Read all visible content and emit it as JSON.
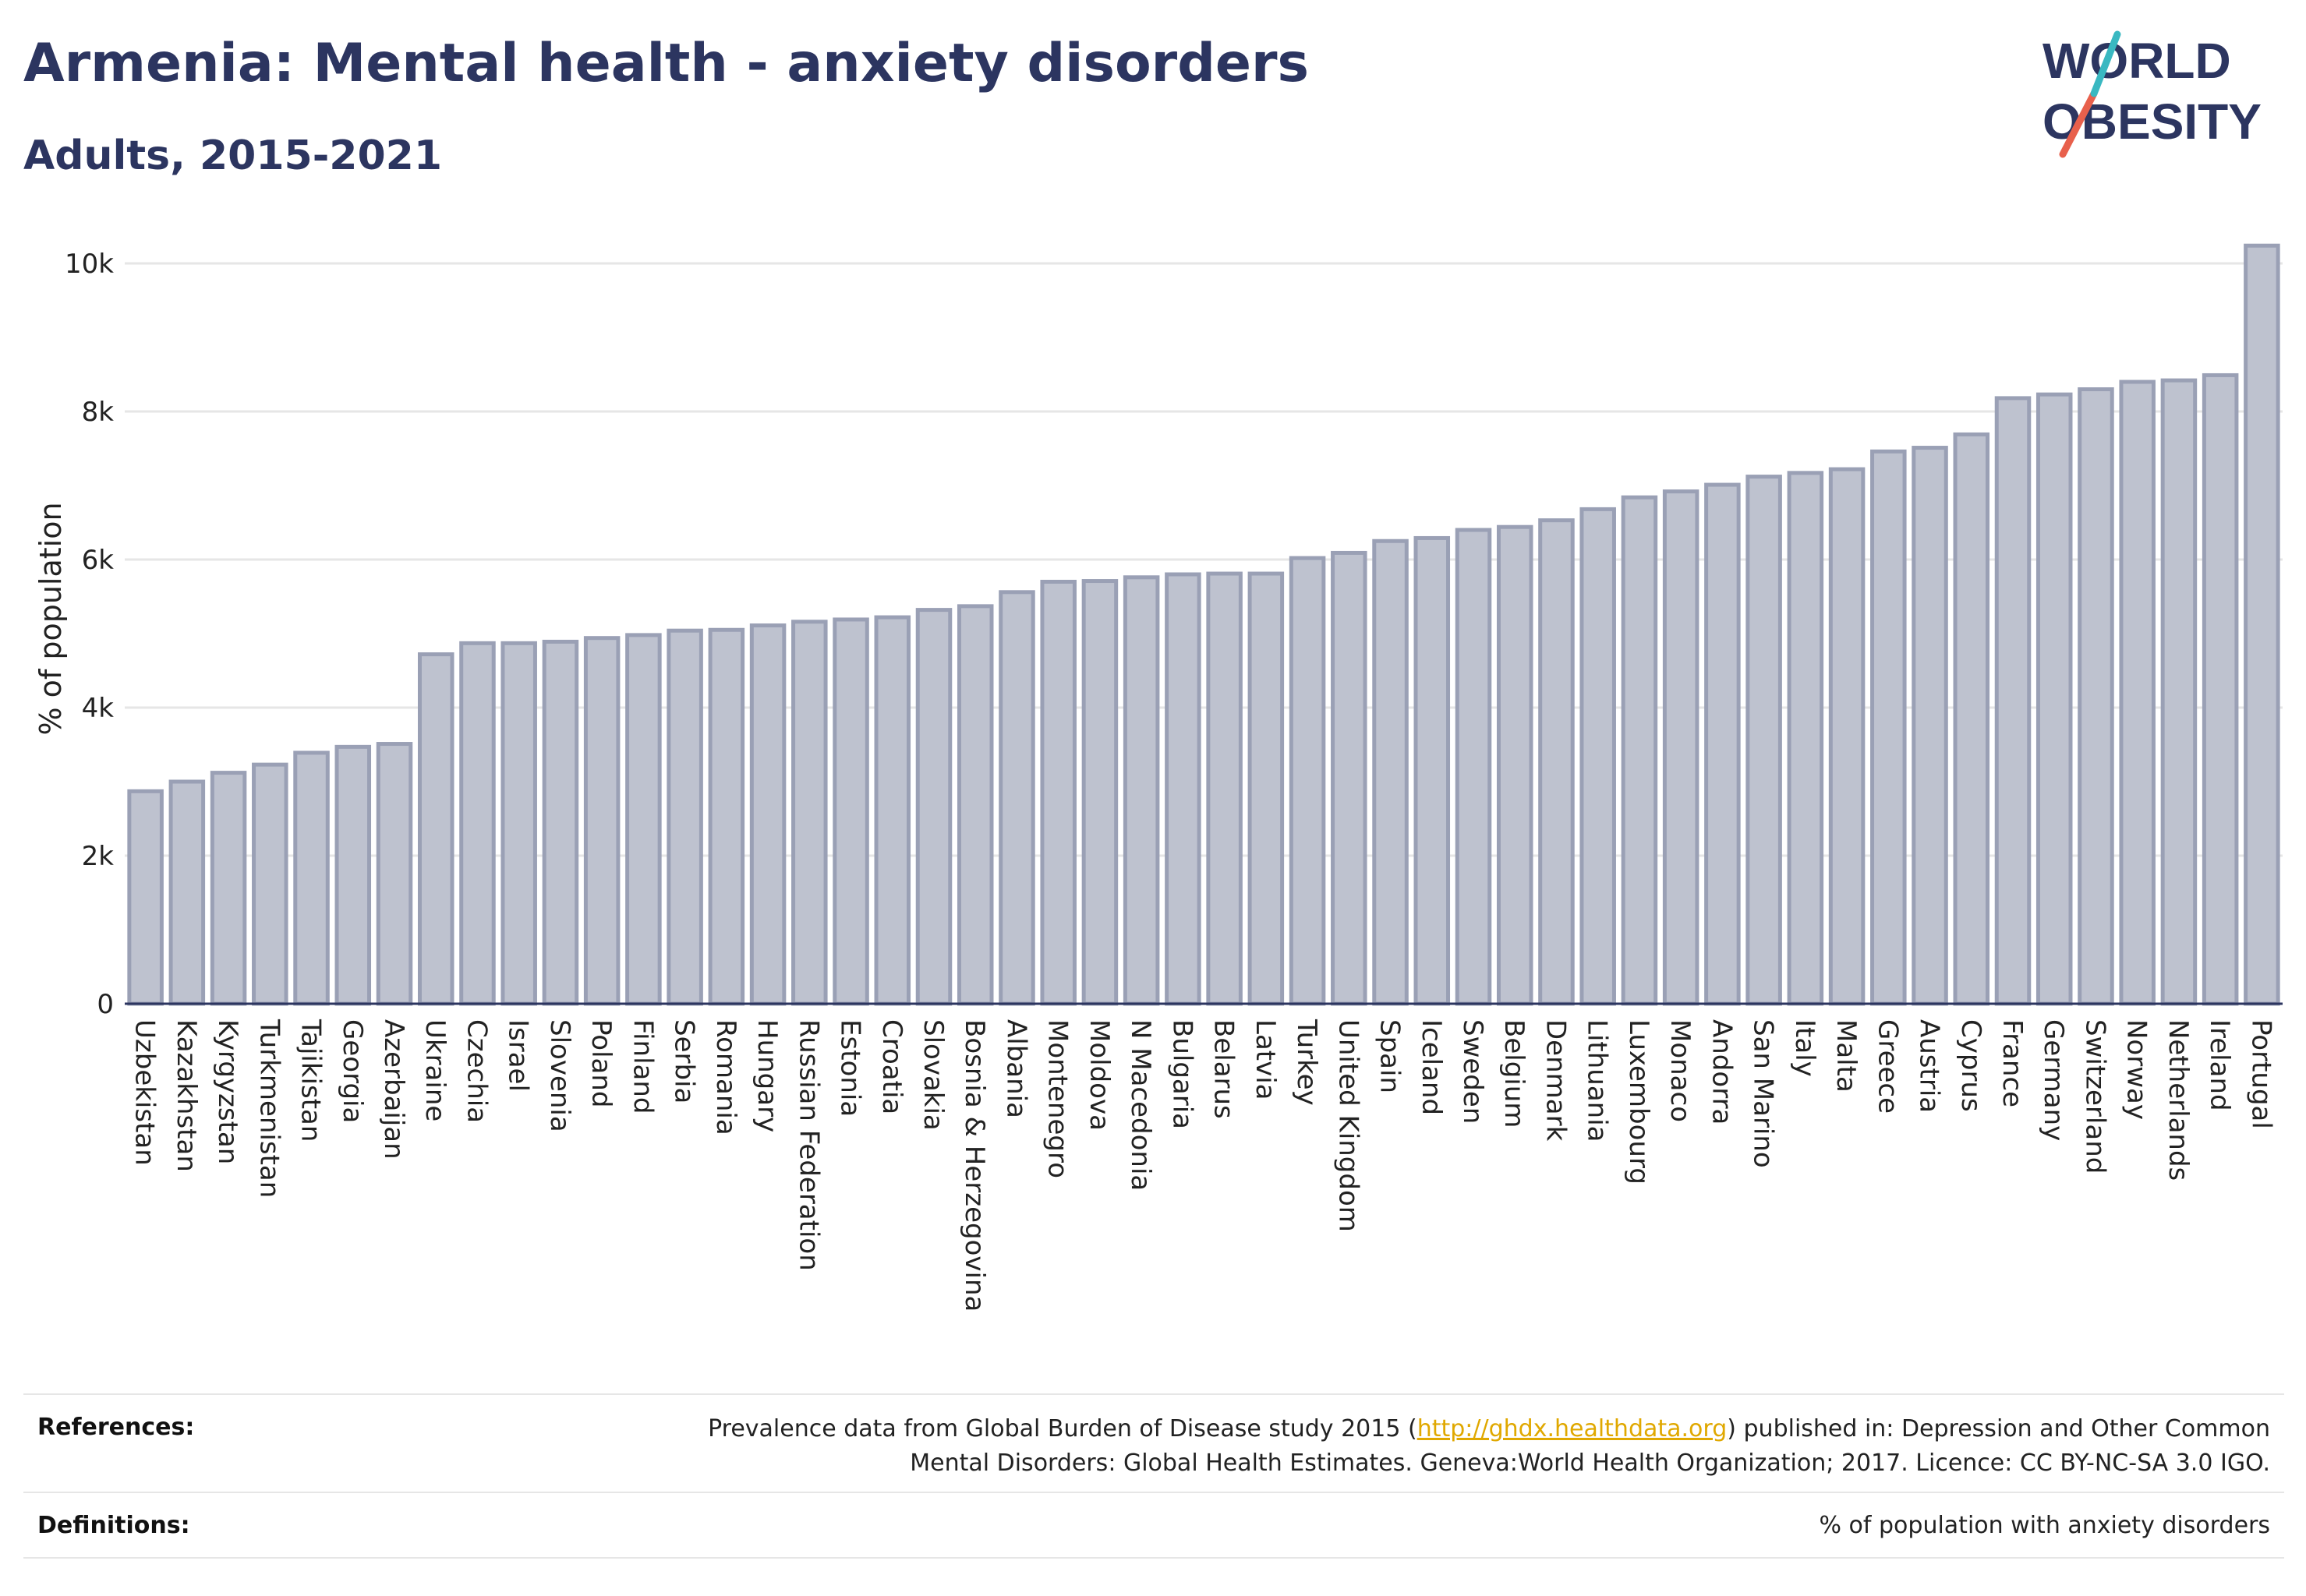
{
  "header": {
    "title": "Armenia: Mental health - anxiety disorders",
    "subtitle": "Adults, 2015-2021"
  },
  "logo": {
    "line1": "WORLD",
    "line2": "OBESITY",
    "colors": {
      "text": "#2c3560",
      "slash_red": "#e8604c",
      "slash_teal": "#39b8c1"
    }
  },
  "chart_data": {
    "type": "bar",
    "ylabel": "% of population",
    "xlabel": "",
    "ylim": [
      0,
      10400
    ],
    "yticks": [
      0,
      2000,
      4000,
      6000,
      8000,
      10000
    ],
    "ytick_labels": [
      "0",
      "2k",
      "4k",
      "6k",
      "8k",
      "10k"
    ],
    "grid": true,
    "bar_color": "#bec2cf",
    "bar_edge_color": "#9aa0b5",
    "categories": [
      "Uzbekistan",
      "Kazakhstan",
      "Kyrgyzstan",
      "Turkmenistan",
      "Tajikistan",
      "Georgia",
      "Azerbaijan",
      "Ukraine",
      "Czechia",
      "Israel",
      "Slovenia",
      "Poland",
      "Finland",
      "Serbia",
      "Romania",
      "Hungary",
      "Russian Federation",
      "Estonia",
      "Croatia",
      "Slovakia",
      "Bosnia & Herzegovina",
      "Albania",
      "Montenegro",
      "Moldova",
      "N Macedonia",
      "Bulgaria",
      "Belarus",
      "Latvia",
      "Turkey",
      "United Kingdom",
      "Spain",
      "Iceland",
      "Sweden",
      "Belgium",
      "Denmark",
      "Lithuania",
      "Luxembourg",
      "Monaco",
      "Andorra",
      "San Marino",
      "Italy",
      "Malta",
      "Greece",
      "Austria",
      "Cyprus",
      "France",
      "Germany",
      "Switzerland",
      "Norway",
      "Netherlands",
      "Ireland",
      "Portugal"
    ],
    "values": [
      2870,
      3000,
      3120,
      3230,
      3390,
      3470,
      3510,
      4720,
      4870,
      4870,
      4890,
      4940,
      4980,
      5040,
      5050,
      5110,
      5160,
      5190,
      5220,
      5320,
      5370,
      5560,
      5700,
      5710,
      5760,
      5800,
      5810,
      5810,
      6020,
      6090,
      6250,
      6290,
      6400,
      6440,
      6530,
      6680,
      6840,
      6920,
      7010,
      7120,
      7170,
      7220,
      7460,
      7510,
      7690,
      8180,
      8230,
      8300,
      8400,
      8420,
      8490,
      10240
    ]
  },
  "footer": {
    "references_label": "References:",
    "references_text_before": "Prevalence data from Global Burden of Disease study 2015 (",
    "references_link": "http://ghdx.healthdata.org",
    "references_text_after": ") published in: Depression and Other Common",
    "references_text_line2": "Mental Disorders: Global Health Estimates. Geneva:World Health Organization; 2017. Licence: CC BY-NC-SA 3.0 IGO.",
    "definitions_label": "Definitions:",
    "definitions_text": "% of population with anxiety disorders"
  }
}
